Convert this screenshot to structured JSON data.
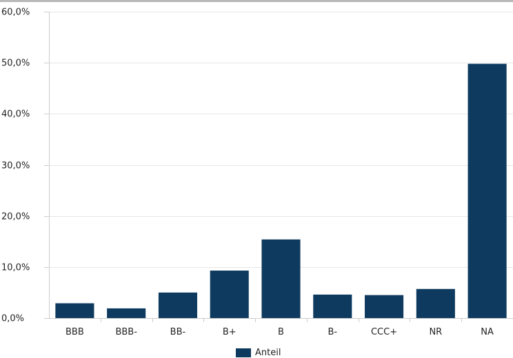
{
  "chart_data": {
    "type": "bar",
    "title": "",
    "xlabel": "",
    "ylabel": "",
    "categories": [
      "BBB",
      "BBB-",
      "BB-",
      "B+",
      "B",
      "B-",
      "CCC+",
      "NR",
      "NA"
    ],
    "series": [
      {
        "name": "Anteil",
        "values": [
          2.9,
          1.9,
          5.0,
          9.3,
          15.4,
          4.6,
          4.5,
          5.7,
          49.8
        ]
      }
    ],
    "ylim": [
      0,
      60
    ],
    "yticks": [
      0,
      10,
      20,
      30,
      40,
      50,
      60
    ],
    "ytick_labels": [
      "0,0%",
      "10,0%",
      "20,0%",
      "30,0%",
      "40,0%",
      "50,0%",
      "60,0%"
    ],
    "grid": true,
    "legend_position": "bottom",
    "colors": {
      "bar": "#0e3a5f",
      "grid": "#e6e6e6",
      "axis": "#cccccc",
      "text": "#222222"
    }
  }
}
